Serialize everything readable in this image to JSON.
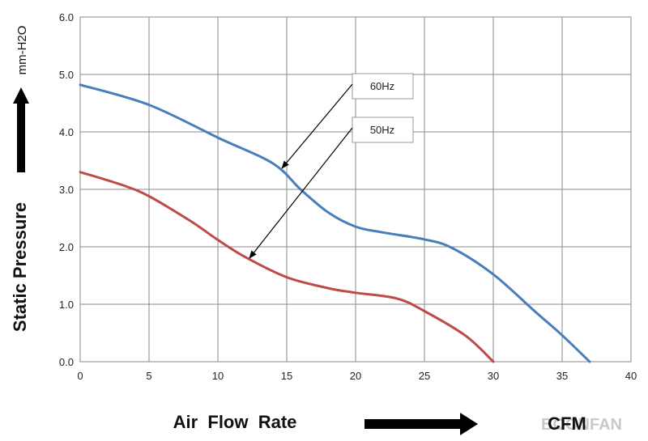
{
  "chart_data": {
    "type": "line",
    "xlabel": "Air  Flow  Rate",
    "x_unit": "CFM",
    "ylabel": "Static  Pressure",
    "y_unit": "mm-H2O",
    "xlim": [
      0,
      40
    ],
    "ylim": [
      0,
      6
    ],
    "x_ticks": [
      "0",
      "5",
      "10",
      "15",
      "20",
      "25",
      "30",
      "35",
      "40"
    ],
    "y_ticks": [
      "0.0",
      "1.0",
      "2.0",
      "3.0",
      "4.0",
      "5.0",
      "6.0"
    ],
    "grid": true,
    "series": [
      {
        "name": "60Hz",
        "color": "#4a7ebb",
        "x": [
          0,
          5,
          10,
          14,
          16,
          18,
          20,
          22,
          25,
          27,
          30,
          33,
          35,
          37
        ],
        "y": [
          4.82,
          4.47,
          3.9,
          3.45,
          3.0,
          2.6,
          2.35,
          2.25,
          2.13,
          1.98,
          1.52,
          0.88,
          0.46,
          0.0
        ]
      },
      {
        "name": "50Hz",
        "color": "#be4b48",
        "x": [
          0,
          3,
          5,
          8,
          10,
          12,
          15,
          18,
          20,
          23,
          25,
          28,
          30
        ],
        "y": [
          3.3,
          3.08,
          2.88,
          2.45,
          2.12,
          1.82,
          1.47,
          1.28,
          1.2,
          1.1,
          0.88,
          0.45,
          0.0
        ]
      }
    ],
    "annotations": [
      {
        "label": "60Hz",
        "target": "60Hz"
      },
      {
        "label": "50Hz",
        "target": "50Hz"
      }
    ]
  },
  "watermark": "BOONFAN"
}
